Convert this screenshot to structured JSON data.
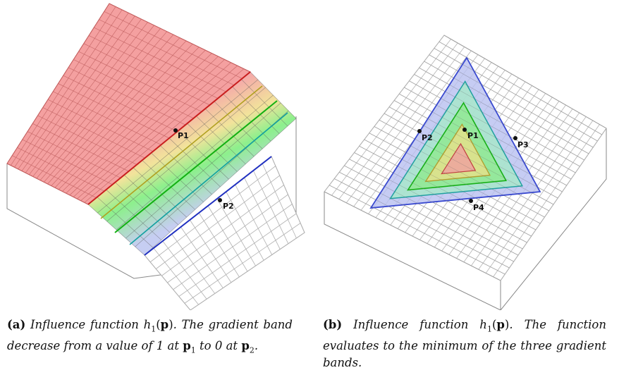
{
  "figure_a": {
    "labels": {
      "p1": "P1",
      "p2": "P2"
    },
    "band_colors": {
      "top": "#f08080",
      "red_line": "#c81e1e",
      "green_line": "#12b012",
      "teal_line": "#12a0a0",
      "blue_line": "#2030c0",
      "grid": "#999999"
    }
  },
  "figure_b": {
    "labels": {
      "p1": "P1",
      "p2": "P2",
      "p3": "P3",
      "p4": "P4"
    },
    "band_colors": {
      "outer_edge": "#3a4ad0",
      "fill_blue": "#b8bff0",
      "fill_green": "#8fe88f",
      "fill_yellow": "#e8e08a",
      "fill_red": "#f0a0a0"
    }
  },
  "captions": {
    "a": {
      "tag": "(a)",
      "t1": " Influence function ",
      "h": "h",
      "sub": "1",
      "paren_open": "(",
      "p": "p",
      "paren_close": ")",
      "t2": ".  The gradient band decrease from a value of 1 at ",
      "p1": "p",
      "p1sub": "1",
      "t3": " to 0 at ",
      "p2": "p",
      "p2sub": "2",
      "t4": "."
    },
    "b": {
      "tag": "(b)",
      "t1": " Influence function ",
      "h": "h",
      "sub": "1",
      "paren_open": "(",
      "p": "p",
      "paren_close": ")",
      "t2": ".  The function evaluates to the minimum of the three gradient bands."
    }
  }
}
